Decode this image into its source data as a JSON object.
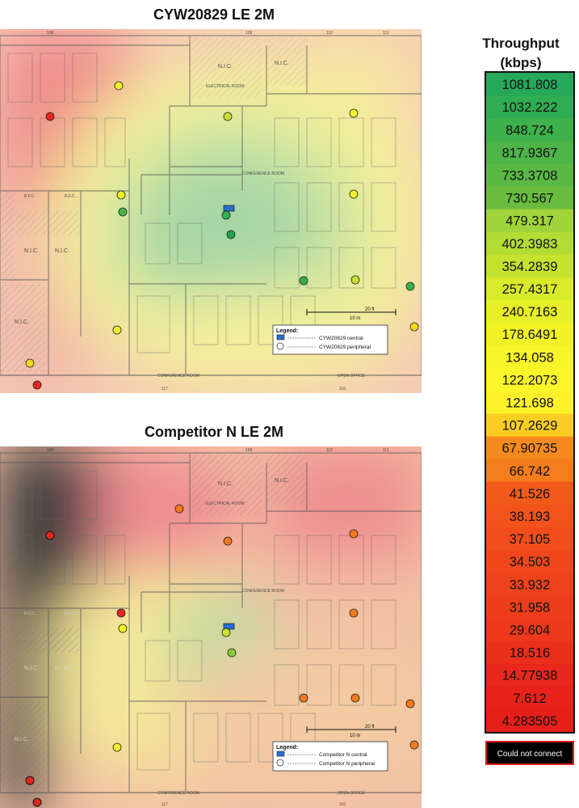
{
  "maps": [
    {
      "title": "CYW20829 LE 2M",
      "legend_title": "Legend:",
      "legend_central": "CYW20829 central",
      "legend_peripheral": "CYW20829 peripheral",
      "scale_10": "10 m",
      "scale_20": "20 ft",
      "room_labels": [
        "N.I.C.",
        "N.I.C.",
        "N.I.C.",
        "N.I.C.",
        "N.I.C.",
        "ELECTRICAL ROOM",
        "CONFERENCE ROOM",
        "CONFERENCE ROOM",
        "OPEN OFFICE",
        "R.F.C.",
        "R.F.C."
      ],
      "room_numbers": [
        "108",
        "109",
        "110",
        "111",
        "117",
        "116"
      ]
    },
    {
      "title": "Competitor N LE 2M",
      "legend_title": "Legend:",
      "legend_central": "Competitor N central",
      "legend_peripheral": "Competitor N peripheral",
      "scale_10": "10 m",
      "scale_20": "20 ft",
      "room_labels": [
        "N.I.C.",
        "N.I.C.",
        "N.I.C.",
        "N.I.C.",
        "N.I.C.",
        "ELECTRICAL ROOM",
        "CONFERENCE ROOM",
        "CONFERENCE ROOM",
        "OPEN OFFICE",
        "R.F.C.",
        "R.F.C."
      ],
      "room_numbers": [
        "108",
        "109",
        "110",
        "111",
        "117",
        "116"
      ]
    }
  ],
  "legend": {
    "title_line1": "Throughput",
    "title_line2": "(kbps)",
    "entries": [
      {
        "value": "1081.808",
        "color": "#26a85a"
      },
      {
        "value": "1032.222",
        "color": "#2fad52"
      },
      {
        "value": "848.724",
        "color": "#3eb04c"
      },
      {
        "value": "817.9367",
        "color": "#4db447"
      },
      {
        "value": "733.3708",
        "color": "#5ab844"
      },
      {
        "value": "730.567",
        "color": "#6abc3f"
      },
      {
        "value": "479.317",
        "color": "#9fd43a"
      },
      {
        "value": "402.3983",
        "color": "#b3dc35"
      },
      {
        "value": "354.2839",
        "color": "#c5e22f"
      },
      {
        "value": "257.4317",
        "color": "#d9ea2a"
      },
      {
        "value": "240.7163",
        "color": "#e6ef27"
      },
      {
        "value": "178.6491",
        "color": "#f0f226"
      },
      {
        "value": "134.058",
        "color": "#f7f527"
      },
      {
        "value": "122.2073",
        "color": "#fbf529"
      },
      {
        "value": "121.698",
        "color": "#fdf22a"
      },
      {
        "value": "107.2629",
        "color": "#fbcd23"
      },
      {
        "value": "67.90735",
        "color": "#f68a1e"
      },
      {
        "value": "66.742",
        "color": "#f47e1c"
      },
      {
        "value": "41.526",
        "color": "#f25a1b"
      },
      {
        "value": "38.193",
        "color": "#f1531b"
      },
      {
        "value": "37.105",
        "color": "#f04d1b"
      },
      {
        "value": "34.503",
        "color": "#ef471b"
      },
      {
        "value": "33.932",
        "color": "#ee421b"
      },
      {
        "value": "31.958",
        "color": "#ed3d1b"
      },
      {
        "value": "29.604",
        "color": "#ec391b"
      },
      {
        "value": "18.516",
        "color": "#ea2f1b"
      },
      {
        "value": "14.77938",
        "color": "#e9281b"
      },
      {
        "value": "7.612",
        "color": "#e8221b"
      },
      {
        "value": "4.283505",
        "color": "#e71f1a"
      }
    ],
    "no_connect": {
      "value": "Could not connect",
      "color": "#000000",
      "border": "#e31c1c"
    }
  }
}
